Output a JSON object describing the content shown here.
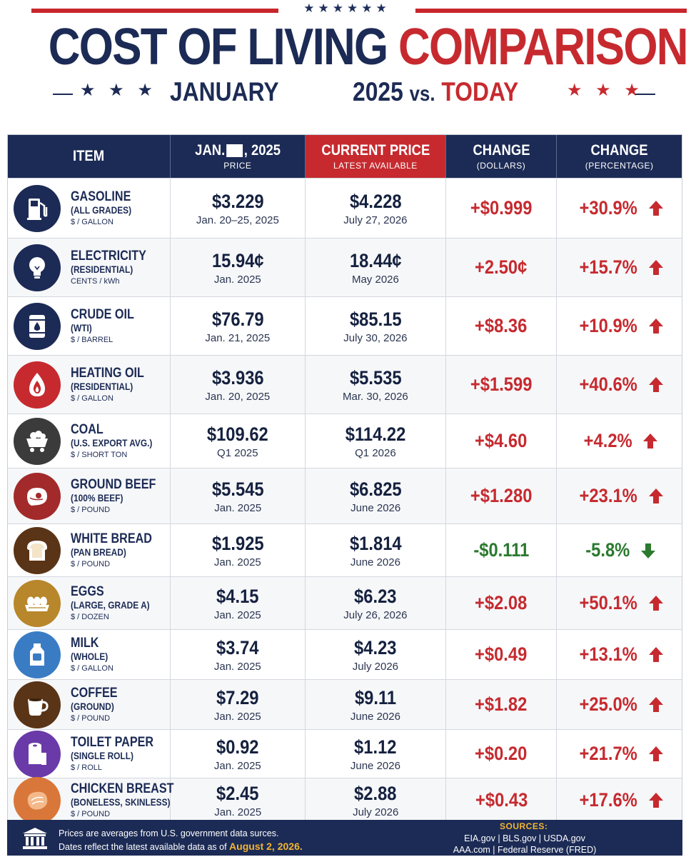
{
  "header": {
    "stars_top": "★★★★★★",
    "title_part1": "COST OF LIVING",
    "title_part2": "COMPARISON",
    "sub_stars_left": "★ ★ ★",
    "sub_left": "JANUARY",
    "sub_year": "2025",
    "sub_vs": "vs.",
    "sub_today": "TODAY",
    "sub_stars_right": "★ ★ ★"
  },
  "columns": {
    "item": "ITEM",
    "jan_prefix": "JAN.",
    "jan_suffix": ", 2025",
    "jan_sub": "PRICE",
    "current": "CURRENT PRICE",
    "current_sub": "LATEST AVAILABLE",
    "change_usd": "CHANGE",
    "change_usd_sub": "(DOLLARS)",
    "change_pct": "CHANGE",
    "change_pct_sub": "(PERCENTAGE)"
  },
  "colors": {
    "navy": "#1c2b55",
    "red": "#c62a2f",
    "green": "#2b7a2f",
    "gold": "#f2b632"
  },
  "rows": [
    {
      "icon": "gas-pump-icon",
      "icon_color": "#1c2b55",
      "name": "GASOLINE",
      "sub": "(ALL GRADES)",
      "unit": "$ / GALLON",
      "jan_price": "$3.229",
      "jan_date": "Jan. 20–25, 2025",
      "cur_price": "$4.228",
      "cur_date": "July 27, 2026",
      "change_usd": "+$0.999",
      "change_pct": "+30.9%",
      "direction": "up"
    },
    {
      "icon": "light-bulb-icon",
      "icon_color": "#1c2b55",
      "name": "ELECTRICITY",
      "sub": "(RESIDENTIAL)",
      "unit": "CENTS / kWh",
      "jan_price": "15.94¢",
      "jan_date": "Jan. 2025",
      "cur_price": "18.44¢",
      "cur_date": "May 2026",
      "change_usd": "+2.50¢",
      "change_pct": "+15.7%",
      "direction": "up"
    },
    {
      "icon": "oil-barrel-icon",
      "icon_color": "#1c2b55",
      "name": "CRUDE OIL",
      "sub": "(WTI)",
      "unit": "$ / BARREL",
      "jan_price": "$76.79",
      "jan_date": "Jan. 21, 2025",
      "cur_price": "$85.15",
      "cur_date": "July 30, 2026",
      "change_usd": "+$8.36",
      "change_pct": "+10.9%",
      "direction": "up"
    },
    {
      "icon": "flame-drop-icon",
      "icon_color": "#c62a2f",
      "name": "HEATING OIL",
      "sub": "(RESIDENTIAL)",
      "unit": "$ / GALLON",
      "jan_price": "$3.936",
      "jan_date": "Jan. 20, 2025",
      "cur_price": "$5.535",
      "cur_date": "Mar. 30, 2026",
      "change_usd": "+$1.599",
      "change_pct": "+40.6%",
      "direction": "up"
    },
    {
      "icon": "coal-cart-icon",
      "icon_color": "#3b3b3b",
      "name": "COAL",
      "sub": "(U.S. EXPORT AVG.)",
      "unit": "$ / SHORT TON",
      "jan_price": "$109.62",
      "jan_date": "Q1 2025",
      "cur_price": "$114.22",
      "cur_date": "Q1 2026",
      "change_usd": "+$4.60",
      "change_pct": "+4.2%",
      "direction": "up"
    },
    {
      "icon": "steak-icon",
      "icon_color": "#a32a2a",
      "name": "GROUND BEEF",
      "sub": "(100% BEEF)",
      "unit": "$ / POUND",
      "jan_price": "$5.545",
      "jan_date": "Jan. 2025",
      "cur_price": "$6.825",
      "cur_date": "June 2026",
      "change_usd": "+$1.280",
      "change_pct": "+23.1%",
      "direction": "up"
    },
    {
      "icon": "bread-icon",
      "icon_color": "#5a3416",
      "name": "WHITE BREAD",
      "sub": "(PAN BREAD)",
      "unit": "$ / POUND",
      "jan_price": "$1.925",
      "jan_date": "Jan. 2025",
      "cur_price": "$1.814",
      "cur_date": "June 2026",
      "change_usd": "-$0.111",
      "change_pct": "-5.8%",
      "direction": "down"
    },
    {
      "icon": "eggs-icon",
      "icon_color": "#b8862b",
      "name": "EGGS",
      "sub": "(LARGE, GRADE A)",
      "unit": "$ / DOZEN",
      "jan_price": "$4.15",
      "jan_date": "Jan. 2025",
      "cur_price": "$6.23",
      "cur_date": "July 26, 2026",
      "change_usd": "+$2.08",
      "change_pct": "+50.1%",
      "direction": "up"
    },
    {
      "icon": "milk-jug-icon",
      "icon_color": "#3a7cc4",
      "name": "MILK",
      "sub": "(WHOLE)",
      "unit": "$ / GALLON",
      "jan_price": "$3.74",
      "jan_date": "Jan. 2025",
      "cur_price": "$4.23",
      "cur_date": "July 2026",
      "change_usd": "+$0.49",
      "change_pct": "+13.1%",
      "direction": "up"
    },
    {
      "icon": "coffee-cup-icon",
      "icon_color": "#5a3416",
      "name": "COFFEE",
      "sub": "(GROUND)",
      "unit": "$ / POUND",
      "jan_price": "$7.29",
      "jan_date": "Jan. 2025",
      "cur_price": "$9.11",
      "cur_date": "June 2026",
      "change_usd": "+$1.82",
      "change_pct": "+25.0%",
      "direction": "up"
    },
    {
      "icon": "toilet-paper-icon",
      "icon_color": "#6a3aa8",
      "name": "TOILET PAPER",
      "sub": "(SINGLE ROLL)",
      "unit": "$ / ROLL",
      "jan_price": "$0.92",
      "jan_date": "Jan. 2025",
      "cur_price": "$1.12",
      "cur_date": "June 2026",
      "change_usd": "+$0.20",
      "change_pct": "+21.7%",
      "direction": "up"
    },
    {
      "icon": "chicken-breast-icon",
      "icon_color": "#d9773a",
      "name": "CHICKEN BREAST",
      "sub": "(BONELESS, SKINLESS)",
      "unit": "$ / POUND",
      "jan_price": "$2.45",
      "jan_date": "Jan. 2025",
      "cur_price": "$2.88",
      "cur_date": "July 2026",
      "change_usd": "+$0.43",
      "change_pct": "+17.6%",
      "direction": "up"
    }
  ],
  "footer": {
    "note1": "Prices are averages from U.S. government data surces.",
    "note2_prefix": "Dates reflect the latest available data as of",
    "note2_date": "August 2, 2026.",
    "sources_title": "SOURCES:",
    "sources_line1": "EIA.gov  |  BLS.gov  |  USDA.gov",
    "sources_line2": "AAA.com  |  Federal Reserve (FRED)"
  }
}
